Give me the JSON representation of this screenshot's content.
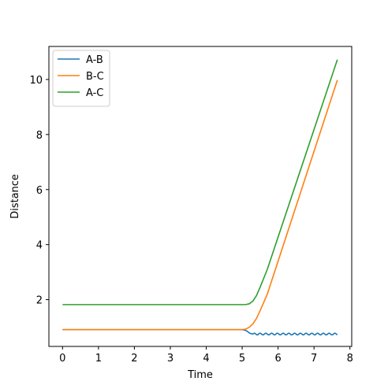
{
  "chart_data": {
    "type": "line",
    "title": "",
    "xlabel": "Time",
    "ylabel": "Distance",
    "xlim": [
      -0.38,
      8.05
    ],
    "ylim": [
      0.3,
      11.2
    ],
    "xticks": [
      0,
      1,
      2,
      3,
      4,
      5,
      6,
      7,
      8
    ],
    "yticks": [
      2,
      4,
      6,
      8,
      10
    ],
    "grid": false,
    "legend": "top-left",
    "series": [
      {
        "name": "A-B",
        "color": "#1f77b4",
        "points": [
          [
            0,
            0.91
          ],
          [
            5.0,
            0.91
          ],
          [
            5.05,
            0.9
          ],
          [
            5.1,
            0.88
          ],
          [
            5.15,
            0.84
          ],
          [
            5.2,
            0.79
          ],
          [
            5.25,
            0.76
          ],
          [
            5.3,
            0.75
          ]
        ],
        "oscillation": {
          "from": 5.3,
          "to": 7.65,
          "center": 0.75,
          "amplitude": 0.03,
          "period": 0.16
        }
      },
      {
        "name": "B-C",
        "color": "#ff7f0e",
        "points": [
          [
            0,
            0.91
          ],
          [
            5.0,
            0.91
          ],
          [
            5.1,
            0.93
          ],
          [
            5.2,
            1.0
          ],
          [
            5.3,
            1.12
          ],
          [
            5.4,
            1.32
          ],
          [
            5.5,
            1.6
          ],
          [
            5.7,
            2.2
          ],
          [
            7.65,
            9.98
          ]
        ]
      },
      {
        "name": "A-C",
        "color": "#2ca02c",
        "points": [
          [
            0,
            1.82
          ],
          [
            5.1,
            1.82
          ],
          [
            5.2,
            1.85
          ],
          [
            5.3,
            1.95
          ],
          [
            5.4,
            2.15
          ],
          [
            5.5,
            2.45
          ],
          [
            5.7,
            3.1
          ],
          [
            7.65,
            10.72
          ]
        ]
      }
    ]
  }
}
